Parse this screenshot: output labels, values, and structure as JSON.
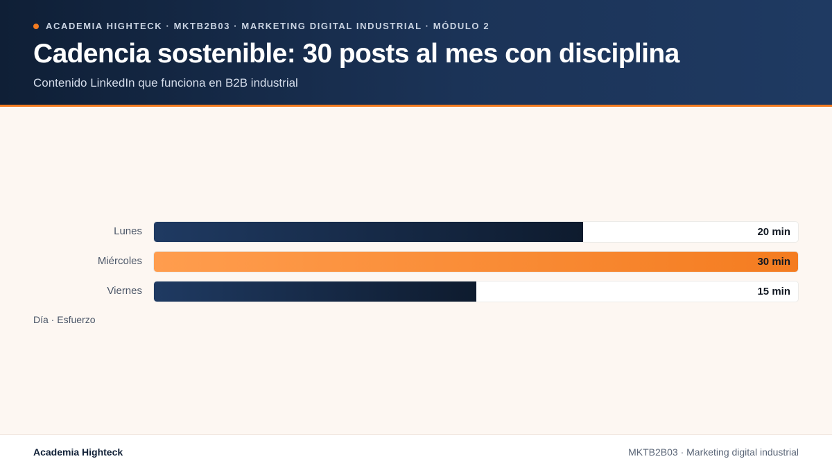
{
  "header": {
    "eyebrow": "ACADEMIA HIGHTECK · MKTB2B03 · MARKETING DIGITAL INDUSTRIAL · MÓDULO 2",
    "title": "Cadencia sostenible: 30 posts al mes con disciplina",
    "subtitle": "Contenido LinkedIn que funciona en B2B industrial"
  },
  "colors": {
    "header_dark": "#0f1f36",
    "header_light": "#1f3a62",
    "accent": "#f47c20",
    "bar_dark": "#0e1b2e",
    "bar_highlight": "#ff9d4e",
    "background": "#fdf7f2"
  },
  "chart_data": {
    "type": "bar",
    "orientation": "horizontal",
    "categories": [
      "Lunes",
      "Miércoles",
      "Viernes"
    ],
    "values": [
      20,
      30,
      15
    ],
    "value_labels": [
      "20 min",
      "30 min",
      "15 min"
    ],
    "highlight_index": 1,
    "xlim": [
      0,
      30
    ],
    "caption": "Día · Esfuerzo",
    "grid": false
  },
  "footer": {
    "left": "Academia Highteck",
    "right": "MKTB2B03 · Marketing digital industrial"
  }
}
